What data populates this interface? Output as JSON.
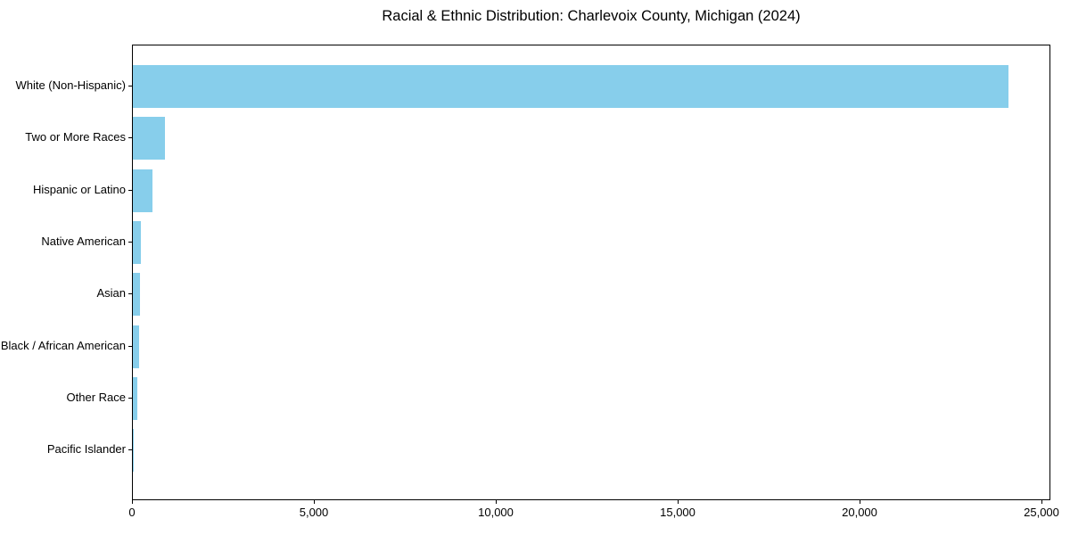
{
  "title": "Racial & Ethnic Distribution: Charlevoix County, Michigan (2024)",
  "colors": {
    "bar": "#87CEEB",
    "background": "#ffffff",
    "axis": "#000000",
    "text": "#000000"
  },
  "chart_data": {
    "type": "bar",
    "orientation": "horizontal",
    "title": "Racial & Ethnic Distribution: Charlevoix County, Michigan (2024)",
    "xlabel": "",
    "ylabel": "",
    "categories": [
      "White (Non-Hispanic)",
      "Two or More Races",
      "Hispanic or Latino",
      "Native American",
      "Asian",
      "Black / African American",
      "Other Race",
      "Pacific Islander"
    ],
    "values": [
      24070,
      890,
      550,
      210,
      190,
      160,
      120,
      10
    ],
    "bar_color": "#87CEEB",
    "xlim": [
      0,
      25245
    ],
    "x_ticks": [
      0,
      5000,
      10000,
      15000,
      20000,
      25000
    ],
    "x_tick_labels": [
      "0",
      "5,000",
      "10,000",
      "15,000",
      "20,000",
      "25,000"
    ],
    "grid": false,
    "legend": "none"
  }
}
